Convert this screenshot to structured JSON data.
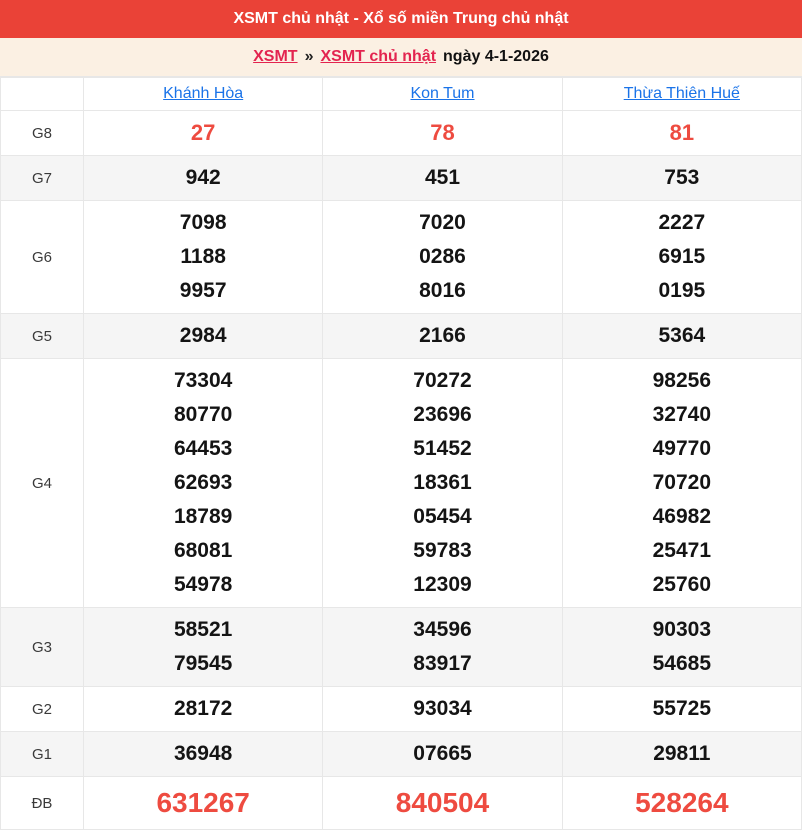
{
  "header": {
    "title": "XSMT chủ nhật - Xổ số miền Trung chủ nhật"
  },
  "breadcrumb": {
    "region_link": "XSMT",
    "separator": "»",
    "day_link": "XSMT chủ nhật",
    "date_text": "ngày 4-1-2026"
  },
  "colors": {
    "top_bar_bg": "#ea4237",
    "top_bar_text": "#ffffff",
    "breadcrumb_bg": "#fbf0e3",
    "breadcrumb_link_red": "#e3244f",
    "province_link_blue": "#1a73e8",
    "number_red": "#ee4b40",
    "number_black": "#141414",
    "alt_row_bg": "#f5f5f5",
    "border": "#e7e7e7"
  },
  "table": {
    "provinces": [
      "Khánh Hòa",
      "Kon Tum",
      "Thừa Thiên Huế"
    ],
    "rows": [
      {
        "id": "g8",
        "label": "G8",
        "style": "red",
        "cells": [
          [
            "27"
          ],
          [
            "78"
          ],
          [
            "81"
          ]
        ]
      },
      {
        "id": "g7",
        "label": "G7",
        "style": "normal",
        "cells": [
          [
            "942"
          ],
          [
            "451"
          ],
          [
            "753"
          ]
        ]
      },
      {
        "id": "g6",
        "label": "G6",
        "style": "normal",
        "cells": [
          [
            "7098",
            "1188",
            "9957"
          ],
          [
            "7020",
            "0286",
            "8016"
          ],
          [
            "2227",
            "6915",
            "0195"
          ]
        ]
      },
      {
        "id": "g5",
        "label": "G5",
        "style": "normal",
        "cells": [
          [
            "2984"
          ],
          [
            "2166"
          ],
          [
            "5364"
          ]
        ]
      },
      {
        "id": "g4",
        "label": "G4",
        "style": "normal",
        "cells": [
          [
            "73304",
            "80770",
            "64453",
            "62693",
            "18789",
            "68081",
            "54978"
          ],
          [
            "70272",
            "23696",
            "51452",
            "18361",
            "05454",
            "59783",
            "12309"
          ],
          [
            "98256",
            "32740",
            "49770",
            "70720",
            "46982",
            "25471",
            "25760"
          ]
        ]
      },
      {
        "id": "g3",
        "label": "G3",
        "style": "normal",
        "cells": [
          [
            "58521",
            "79545"
          ],
          [
            "34596",
            "83917"
          ],
          [
            "90303",
            "54685"
          ]
        ]
      },
      {
        "id": "g2",
        "label": "G2",
        "style": "normal",
        "cells": [
          [
            "28172"
          ],
          [
            "93034"
          ],
          [
            "55725"
          ]
        ]
      },
      {
        "id": "g1",
        "label": "G1",
        "style": "normal",
        "cells": [
          [
            "36948"
          ],
          [
            "07665"
          ],
          [
            "29811"
          ]
        ]
      },
      {
        "id": "db",
        "label": "ĐB",
        "style": "special",
        "cells": [
          [
            "631267"
          ],
          [
            "840504"
          ],
          [
            "528264"
          ]
        ]
      }
    ]
  }
}
